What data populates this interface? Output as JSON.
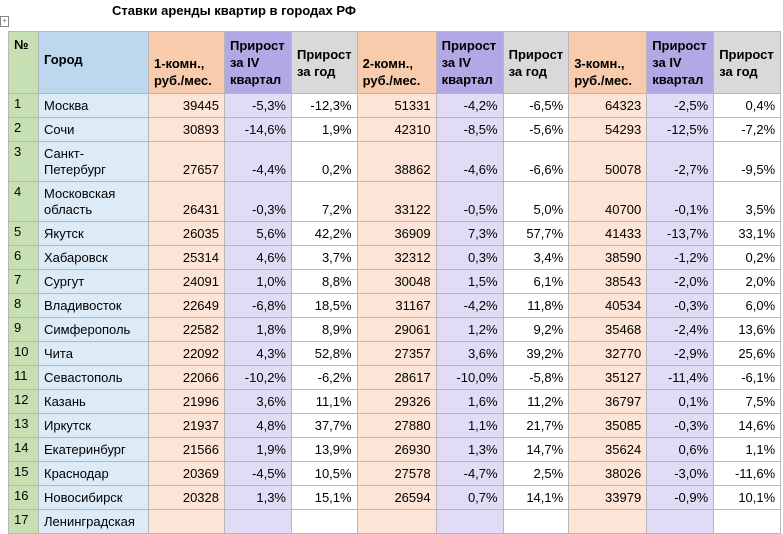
{
  "title": "Ставки аренды квартир в городах РФ",
  "headers": {
    "no": "№",
    "city": "Город",
    "p1": "1-комн., руб./мес.",
    "q1": "Прирост за IV квартал",
    "y1": "Прирост за год",
    "p2": "2-комн., руб./мес.",
    "q2": "Прирост за IV квартал",
    "y2": "Прирост за год",
    "p3": "3-комн., руб./мес.",
    "q3": "Прирост за IV квартал",
    "y3": "Прирост за год"
  },
  "rows": [
    {
      "no": "1",
      "city": "Москва",
      "p1": "39445",
      "q1": "-5,3%",
      "y1": "-12,3%",
      "p2": "51331",
      "q2": "-4,2%",
      "y2": "-6,5%",
      "p3": "64323",
      "q3": "-2,5%",
      "y3": "0,4%"
    },
    {
      "no": "2",
      "city": "Сочи",
      "p1": "30893",
      "q1": "-14,6%",
      "y1": "1,9%",
      "p2": "42310",
      "q2": "-8,5%",
      "y2": "-5,6%",
      "p3": "54293",
      "q3": "-12,5%",
      "y3": "-7,2%"
    },
    {
      "no": "3",
      "city": "Санкт-Петербург",
      "p1": "27657",
      "q1": "-4,4%",
      "y1": "0,2%",
      "p2": "38862",
      "q2": "-4,6%",
      "y2": "-6,6%",
      "p3": "50078",
      "q3": "-2,7%",
      "y3": "-9,5%"
    },
    {
      "no": "4",
      "city": "Московская область",
      "p1": "26431",
      "q1": "-0,3%",
      "y1": "7,2%",
      "p2": "33122",
      "q2": "-0,5%",
      "y2": "5,0%",
      "p3": "40700",
      "q3": "-0,1%",
      "y3": "3,5%"
    },
    {
      "no": "5",
      "city": "Якутск",
      "p1": "26035",
      "q1": "5,6%",
      "y1": "42,2%",
      "p2": "36909",
      "q2": "7,3%",
      "y2": "57,7%",
      "p3": "41433",
      "q3": "-13,7%",
      "y3": "33,1%"
    },
    {
      "no": "6",
      "city": "Хабаровск",
      "p1": "25314",
      "q1": "4,6%",
      "y1": "3,7%",
      "p2": "32312",
      "q2": "0,3%",
      "y2": "3,4%",
      "p3": "38590",
      "q3": "-1,2%",
      "y3": "0,2%"
    },
    {
      "no": "7",
      "city": "Сургут",
      "p1": "24091",
      "q1": "1,0%",
      "y1": "8,8%",
      "p2": "30048",
      "q2": "1,5%",
      "y2": "6,1%",
      "p3": "38543",
      "q3": "-2,0%",
      "y3": "2,0%"
    },
    {
      "no": "8",
      "city": "Владивосток",
      "p1": "22649",
      "q1": "-6,8%",
      "y1": "18,5%",
      "p2": "31167",
      "q2": "-4,2%",
      "y2": "11,8%",
      "p3": "40534",
      "q3": "-0,3%",
      "y3": "6,0%"
    },
    {
      "no": "9",
      "city": "Симферополь",
      "p1": "22582",
      "q1": "1,8%",
      "y1": "8,9%",
      "p2": "29061",
      "q2": "1,2%",
      "y2": "9,2%",
      "p3": "35468",
      "q3": "-2,4%",
      "y3": "13,6%"
    },
    {
      "no": "10",
      "city": "Чита",
      "p1": "22092",
      "q1": "4,3%",
      "y1": "52,8%",
      "p2": "27357",
      "q2": "3,6%",
      "y2": "39,2%",
      "p3": "32770",
      "q3": "-2,9%",
      "y3": "25,6%"
    },
    {
      "no": "11",
      "city": "Севастополь",
      "p1": "22066",
      "q1": "-10,2%",
      "y1": "-6,2%",
      "p2": "28617",
      "q2": "-10,0%",
      "y2": "-5,8%",
      "p3": "35127",
      "q3": "-11,4%",
      "y3": "-6,1%"
    },
    {
      "no": "12",
      "city": "Казань",
      "p1": "21996",
      "q1": "3,6%",
      "y1": "11,1%",
      "p2": "29326",
      "q2": "1,6%",
      "y2": "11,2%",
      "p3": "36797",
      "q3": "0,1%",
      "y3": "7,5%"
    },
    {
      "no": "13",
      "city": "Иркутск",
      "p1": "21937",
      "q1": "4,8%",
      "y1": "37,7%",
      "p2": "27880",
      "q2": "1,1%",
      "y2": "21,7%",
      "p3": "35085",
      "q3": "-0,3%",
      "y3": "14,6%"
    },
    {
      "no": "14",
      "city": "Екатеринбург",
      "p1": "21566",
      "q1": "1,9%",
      "y1": "13,9%",
      "p2": "26930",
      "q2": "1,3%",
      "y2": "14,7%",
      "p3": "35624",
      "q3": "0,6%",
      "y3": "1,1%"
    },
    {
      "no": "15",
      "city": "Краснодар",
      "p1": "20369",
      "q1": "-4,5%",
      "y1": "10,5%",
      "p2": "27578",
      "q2": "-4,7%",
      "y2": "2,5%",
      "p3": "38026",
      "q3": "-3,0%",
      "y3": "-11,6%"
    },
    {
      "no": "16",
      "city": "Новосибирск",
      "p1": "20328",
      "q1": "1,3%",
      "y1": "15,1%",
      "p2": "26594",
      "q2": "0,7%",
      "y2": "14,1%",
      "p3": "33979",
      "q3": "-0,9%",
      "y3": "10,1%"
    },
    {
      "no": "17",
      "city": "Ленинградская",
      "p1": "",
      "q1": "",
      "y1": "",
      "p2": "",
      "q2": "",
      "y2": "",
      "p3": "",
      "q3": "",
      "y3": ""
    }
  ]
}
